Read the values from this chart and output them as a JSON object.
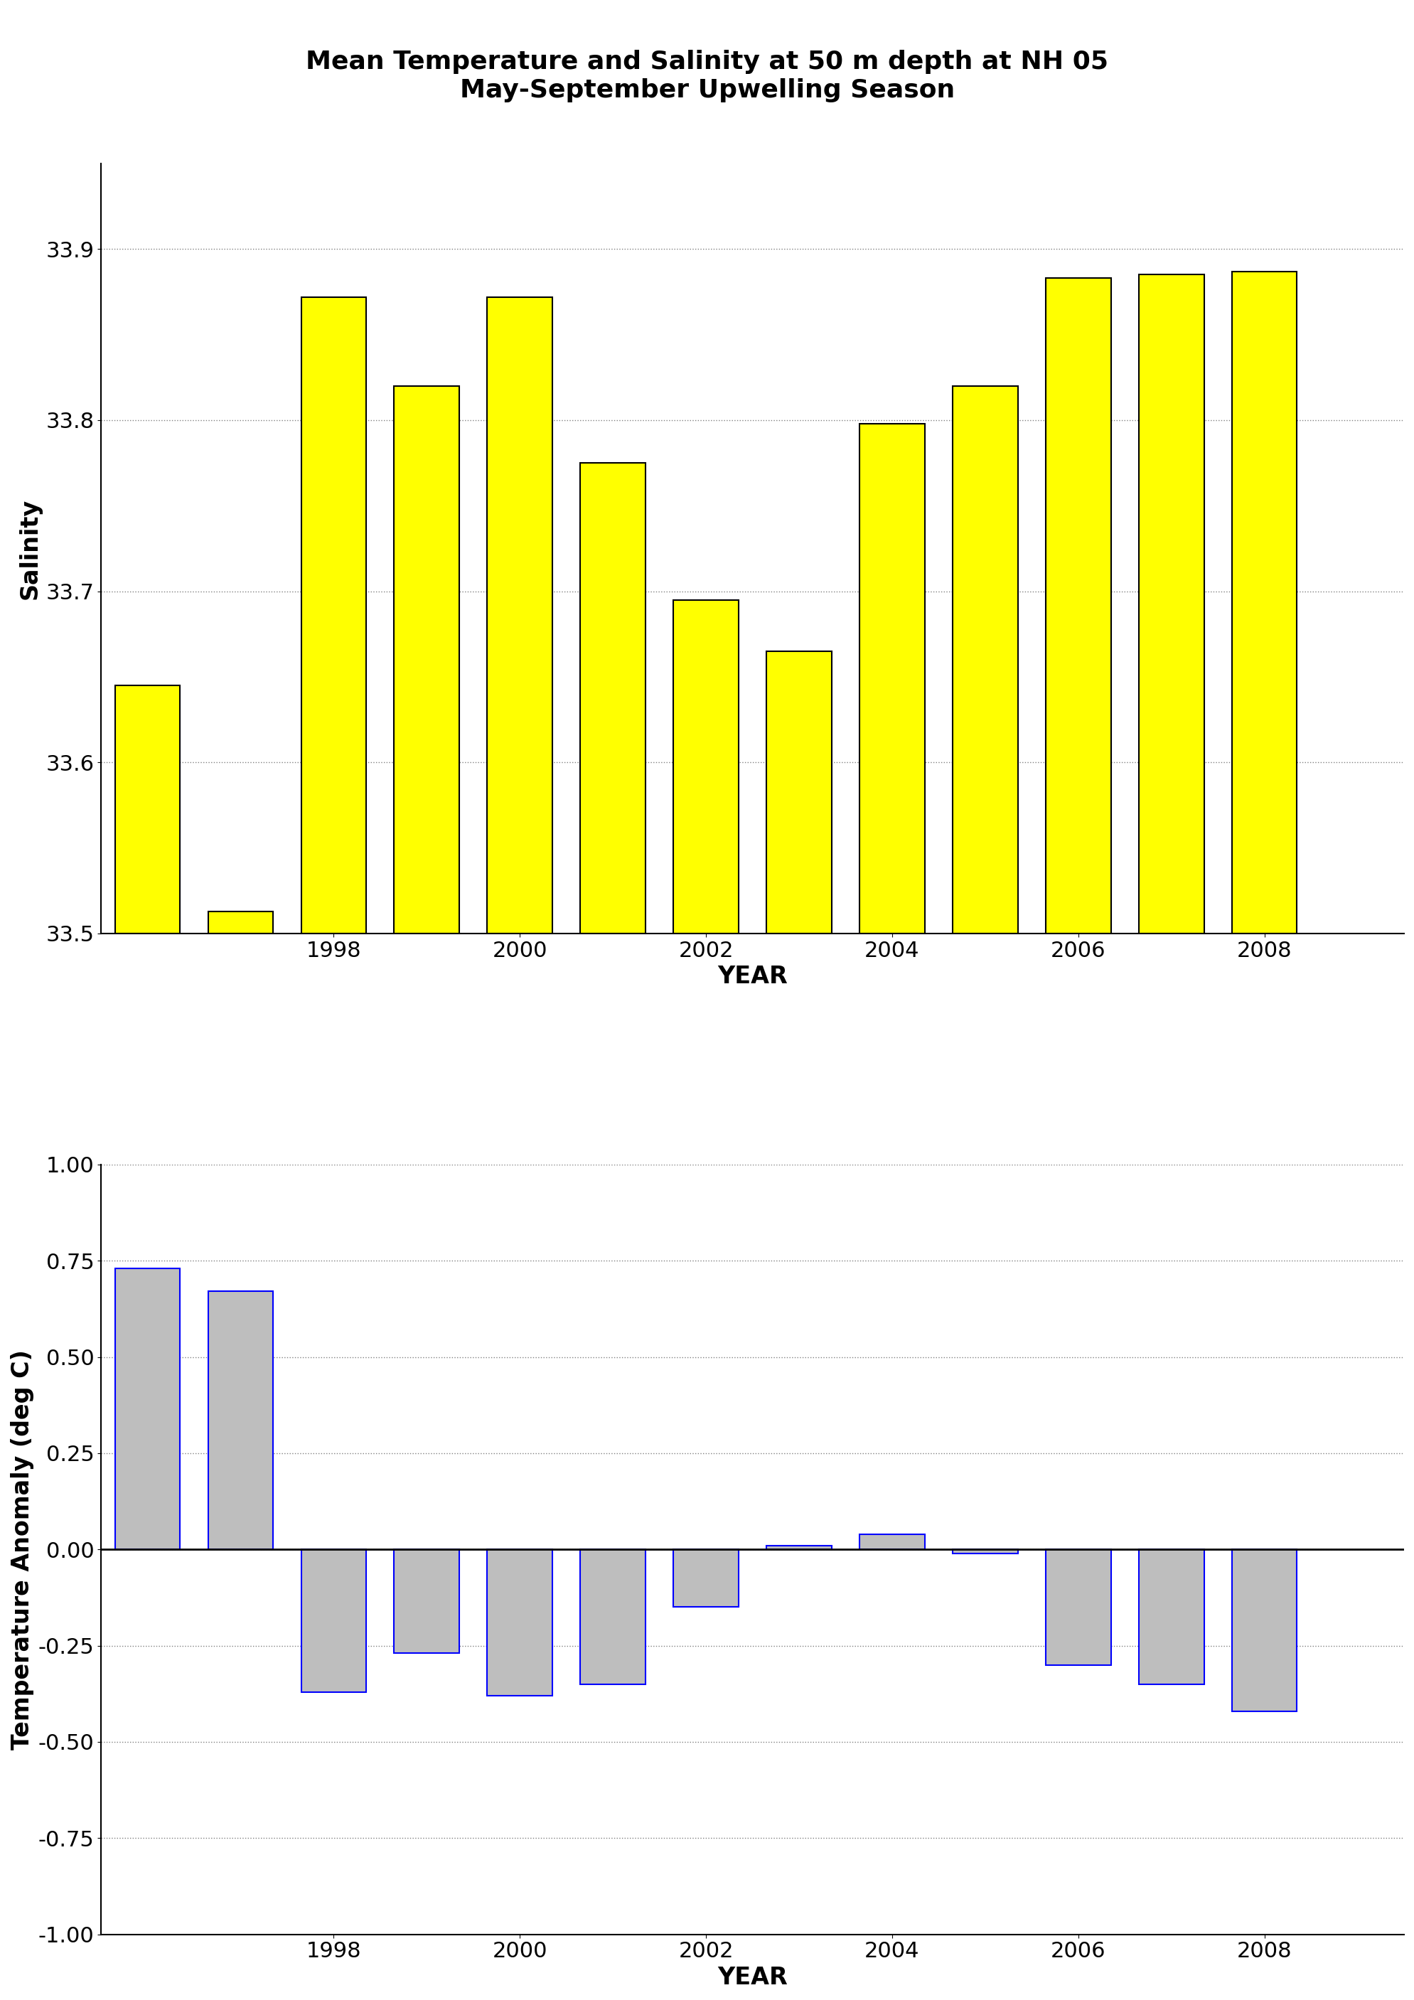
{
  "title_line1": "Mean Temperature and Salinity at 50 m depth at NH 05",
  "title_line2": "May-September Upwelling Season",
  "salinity_years": [
    1996,
    1997,
    1998,
    1999,
    2000,
    2001,
    2002,
    2003,
    2004,
    2005,
    2006,
    2007,
    2008
  ],
  "salinity_values": [
    33.645,
    33.513,
    33.872,
    33.82,
    33.872,
    33.775,
    33.695,
    33.665,
    33.798,
    33.82,
    33.883,
    33.885,
    33.887
  ],
  "salinity_ylim": [
    33.5,
    33.95
  ],
  "salinity_yticks": [
    33.5,
    33.6,
    33.7,
    33.8,
    33.9
  ],
  "salinity_ylabel": "Salinity",
  "salinity_bar_color": "#FFFF00",
  "salinity_bar_edgecolor": "#000000",
  "temp_years": [
    1996,
    1997,
    1998,
    1999,
    2000,
    2001,
    2002,
    2003,
    2004,
    2005,
    2006,
    2007,
    2008
  ],
  "temp_values": [
    0.73,
    0.67,
    -0.37,
    -0.27,
    -0.38,
    -0.35,
    -0.15,
    0.01,
    0.04,
    -0.01,
    -0.3,
    -0.35,
    -0.42
  ],
  "temp_ylim": [
    -1.0,
    1.0
  ],
  "temp_yticks": [
    -1.0,
    -0.75,
    -0.5,
    -0.25,
    0.0,
    0.25,
    0.5,
    0.75,
    1.0
  ],
  "temp_ylabel": "Temperature Anomaly (deg C)",
  "temp_bar_color": "#BEBEBE",
  "temp_bar_edgecolor": "#0000FF",
  "xlabel": "YEAR",
  "xticks": [
    1998,
    2000,
    2002,
    2004,
    2006,
    2008
  ],
  "xlim": [
    1995.5,
    2009.5
  ],
  "bar_width": 0.7,
  "title_fontsize": 26,
  "axis_label_fontsize": 24,
  "tick_fontsize": 22,
  "ylabel_fontsize": 24
}
